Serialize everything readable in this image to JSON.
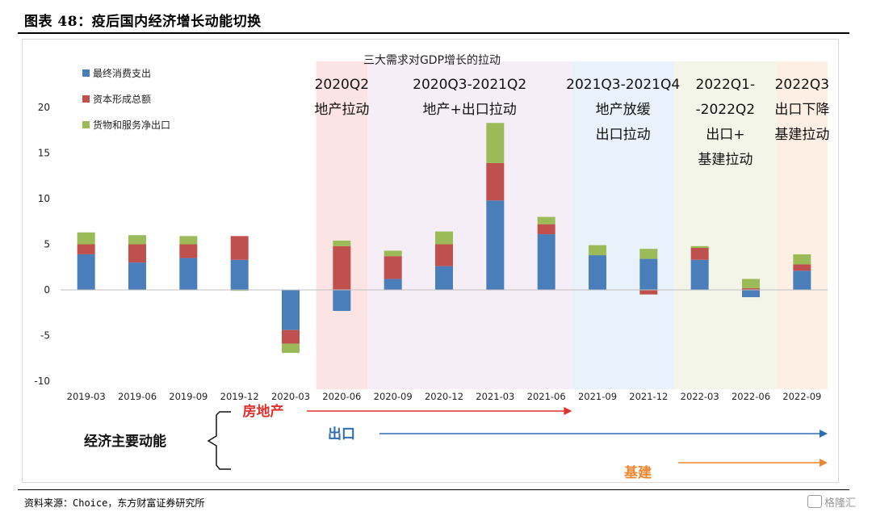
{
  "header": {
    "title": "图表 48：疫后国内经济增长动能切换"
  },
  "footer": {
    "source": "资料来源：Choice，东方财富证券研究所"
  },
  "watermark": {
    "text": "格隆汇"
  },
  "chart_data": {
    "type": "bar",
    "stacked": true,
    "title": "三大需求对GDP增长的拉动",
    "xlabel": "",
    "ylabel": "",
    "ylim": [
      -10,
      20
    ],
    "yticks": [
      -10,
      -5,
      0,
      5,
      10,
      15,
      20
    ],
    "grid": false,
    "legend_position": "top-left",
    "categories": [
      "2019-03",
      "2019-06",
      "2019-09",
      "2019-12",
      "2020-03",
      "2020-06",
      "2020-09",
      "2020-12",
      "2021-03",
      "2021-06",
      "2021-09",
      "2021-12",
      "2022-03",
      "2022-06",
      "2022-09"
    ],
    "series": [
      {
        "name": "最终消费支出",
        "color": "#4a7ebb",
        "values": [
          3.9,
          3.0,
          3.5,
          3.3,
          -4.4,
          -2.3,
          1.2,
          2.6,
          9.8,
          6.1,
          3.8,
          3.4,
          3.3,
          -0.8,
          2.1
        ]
      },
      {
        "name": "资本形成总额",
        "color": "#c0504d",
        "values": [
          1.1,
          2.0,
          1.5,
          2.6,
          -1.5,
          4.8,
          2.5,
          2.4,
          4.1,
          1.1,
          0.0,
          -0.5,
          1.3,
          0.2,
          0.7
        ]
      },
      {
        "name": "货物和服务净出口",
        "color": "#9bbb59",
        "values": [
          1.3,
          1.0,
          0.9,
          -0.1,
          -1.0,
          0.6,
          0.6,
          1.4,
          4.4,
          0.8,
          1.1,
          1.1,
          0.2,
          1.0,
          1.1
        ]
      }
    ],
    "phases": [
      {
        "lines": [
          "2020Q2",
          "地产拉动"
        ],
        "from": 5,
        "to": 5,
        "color": "#fce4e4"
      },
      {
        "lines": [
          "2020Q3-2021Q2",
          "地产+出口拉动"
        ],
        "from": 6,
        "to": 9,
        "color": "#f5eef6"
      },
      {
        "lines": [
          "2021Q3-2021Q4",
          "地产放缓",
          "出口拉动"
        ],
        "from": 10,
        "to": 11,
        "color": "#e9f1fa"
      },
      {
        "lines": [
          "2022Q1-",
          "-2022Q2",
          "出口+",
          "基建拉动"
        ],
        "from": 12,
        "to": 13,
        "color": "#f3f5e8"
      },
      {
        "lines": [
          "2022Q3",
          "出口下降",
          "基建拉动"
        ],
        "from": 14,
        "to": 14,
        "color": "#fdefe3"
      }
    ],
    "drivers_label": "经济主要动能",
    "drivers": [
      {
        "name": "房地产",
        "color": "#e0302a",
        "from": 5,
        "to": 9
      },
      {
        "name": "出口",
        "color": "#2e6db5",
        "from": 6,
        "to": 14
      },
      {
        "name": "基建",
        "color": "#f0862f",
        "from": 12,
        "to": 14
      }
    ]
  }
}
